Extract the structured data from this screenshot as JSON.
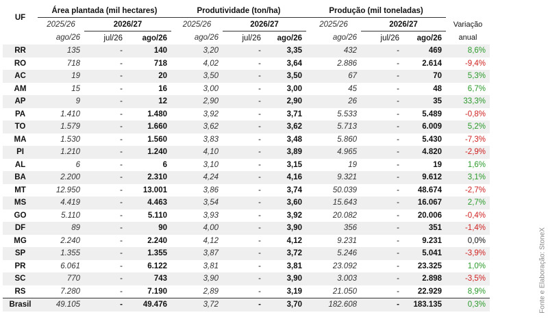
{
  "header": {
    "uf": "UF",
    "groups": [
      "Área plantada (mil hectares)",
      "Produtividade (ton/ha)",
      "Produção (mil toneladas)"
    ],
    "prev_year": [
      "2025/26",
      "2025/26",
      "2025/26"
    ],
    "curr_year": [
      "2026/27",
      "2026/27",
      "2026/27"
    ],
    "months": [
      "ago/26",
      "jul/26",
      "ago/26",
      "ago/26",
      "jul/26",
      "ago/26",
      "ago/26",
      "jul/26",
      "ago/26"
    ],
    "variation": "Variação anual"
  },
  "rows": [
    [
      "RR",
      "135",
      "-",
      "140",
      "3,20",
      "-",
      "3,35",
      "432",
      "-",
      "469",
      "8,6%"
    ],
    [
      "RO",
      "718",
      "-",
      "718",
      "4,02",
      "-",
      "3,64",
      "2.886",
      "-",
      "2.614",
      "-9,4%"
    ],
    [
      "AC",
      "19",
      "-",
      "20",
      "3,50",
      "-",
      "3,50",
      "67",
      "-",
      "70",
      "5,3%"
    ],
    [
      "AM",
      "15",
      "-",
      "16",
      "3,00",
      "-",
      "3,00",
      "45",
      "-",
      "48",
      "6,7%"
    ],
    [
      "AP",
      "9",
      "-",
      "12",
      "2,90",
      "-",
      "2,90",
      "26",
      "-",
      "35",
      "33,3%"
    ],
    [
      "PA",
      "1.410",
      "-",
      "1.480",
      "3,92",
      "-",
      "3,71",
      "5.533",
      "-",
      "5.489",
      "-0,8%"
    ],
    [
      "TO",
      "1.579",
      "-",
      "1.660",
      "3,62",
      "-",
      "3,62",
      "5.713",
      "-",
      "6.009",
      "5,2%"
    ],
    [
      "MA",
      "1.530",
      "-",
      "1.560",
      "3,83",
      "-",
      "3,48",
      "5.860",
      "-",
      "5.430",
      "-7,3%"
    ],
    [
      "PI",
      "1.210",
      "-",
      "1.240",
      "4,10",
      "-",
      "3,89",
      "4.965",
      "-",
      "4.820",
      "-2,9%"
    ],
    [
      "AL",
      "6",
      "-",
      "6",
      "3,10",
      "-",
      "3,15",
      "19",
      "-",
      "19",
      "1,6%"
    ],
    [
      "BA",
      "2.200",
      "-",
      "2.310",
      "4,24",
      "-",
      "4,16",
      "9.321",
      "-",
      "9.612",
      "3,1%"
    ],
    [
      "MT",
      "12.950",
      "-",
      "13.001",
      "3,86",
      "-",
      "3,74",
      "50.039",
      "-",
      "48.674",
      "-2,7%"
    ],
    [
      "MS",
      "4.419",
      "-",
      "4.463",
      "3,54",
      "-",
      "3,60",
      "15.643",
      "-",
      "16.067",
      "2,7%"
    ],
    [
      "GO",
      "5.110",
      "-",
      "5.110",
      "3,93",
      "-",
      "3,92",
      "20.082",
      "-",
      "20.006",
      "-0,4%"
    ],
    [
      "DF",
      "89",
      "-",
      "90",
      "4,00",
      "-",
      "3,90",
      "356",
      "-",
      "351",
      "-1,4%"
    ],
    [
      "MG",
      "2.240",
      "-",
      "2.240",
      "4,12",
      "-",
      "4,12",
      "9.231",
      "-",
      "9.231",
      "0,0%"
    ],
    [
      "SP",
      "1.355",
      "-",
      "1.355",
      "3,87",
      "-",
      "3,72",
      "5.246",
      "-",
      "5.041",
      "-3,9%"
    ],
    [
      "PR",
      "6.061",
      "-",
      "6.122",
      "3,81",
      "-",
      "3,81",
      "23.092",
      "-",
      "23.325",
      "1,0%"
    ],
    [
      "SC",
      "770",
      "-",
      "743",
      "3,90",
      "-",
      "3,90",
      "3.003",
      "-",
      "2.898",
      "-3,5%"
    ],
    [
      "RS",
      "7.280",
      "-",
      "7.190",
      "2,89",
      "-",
      "3,19",
      "21.050",
      "-",
      "22.929",
      "8,9%"
    ],
    [
      "Brasil",
      "49.105",
      "-",
      "49.476",
      "3,72",
      "-",
      "3,70",
      "182.608",
      "-",
      "183.135",
      "0,3%"
    ]
  ],
  "source": "Fonte e Elaboração: StoneX"
}
